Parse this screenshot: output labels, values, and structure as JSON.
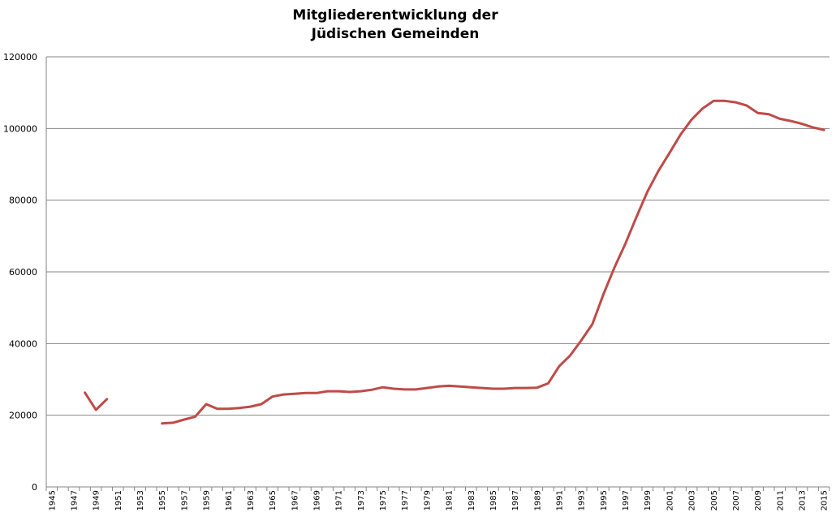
{
  "chart_data": {
    "type": "line",
    "title": [
      "Mitgliederentwicklung der",
      "Jüdischen Gemeinden"
    ],
    "xlabel": "",
    "ylabel": "",
    "xlim": [
      1945,
      2016
    ],
    "ylim": [
      0,
      120000
    ],
    "y_ticks": [
      "0",
      "20000",
      "40000",
      "60000",
      "80000",
      "100000",
      "120000"
    ],
    "x_tick_labels": [
      "1945",
      "1947",
      "1949",
      "1951",
      "1953",
      "1955",
      "1957",
      "1959",
      "1961",
      "1963",
      "1965",
      "1967",
      "1969",
      "1971",
      "1973",
      "1975",
      "1977",
      "1979",
      "1981",
      "1983",
      "1985",
      "1987",
      "1989",
      "1991",
      "1993",
      "1995",
      "1997",
      "1999",
      "2001",
      "2003",
      "2005",
      "2007",
      "2009",
      "2011",
      "2013",
      "2015"
    ],
    "grid": "horizontal",
    "legend": "none",
    "series_color": "#be4b48",
    "gridline_color": "#868686",
    "series": [
      {
        "segments": [
          {
            "x": [
              1948,
              1949,
              1950
            ],
            "y": [
              26300,
              21500,
              24500
            ]
          },
          {
            "x": [
              1955,
              1956,
              1957,
              1958,
              1959,
              1960,
              1961,
              1962,
              1963,
              1964,
              1965,
              1966,
              1967,
              1968,
              1969,
              1970,
              1971,
              1972,
              1973,
              1974,
              1975,
              1976,
              1977,
              1978,
              1979,
              1980,
              1981,
              1982,
              1983,
              1984,
              1985,
              1986,
              1987,
              1988,
              1989,
              1990,
              1991,
              1992,
              1993,
              1994,
              1995,
              1996,
              1997,
              1998,
              1999,
              2000,
              2001,
              2002,
              2003,
              2004,
              2005,
              2006,
              2007,
              2008,
              2009,
              2010,
              2011,
              2012,
              2013,
              2014,
              2015
            ],
            "y": [
              17700,
              17900,
              18800,
              19600,
              23100,
              21800,
              21800,
              22000,
              22400,
              23100,
              25200,
              25800,
              26000,
              26200,
              26200,
              26700,
              26700,
              26500,
              26700,
              27100,
              27800,
              27400,
              27200,
              27200,
              27600,
              28000,
              28200,
              28000,
              27800,
              27600,
              27400,
              27400,
              27600,
              27600,
              27700,
              28900,
              33700,
              36700,
              40900,
              45400,
              53700,
              61200,
              67900,
              75300,
              82400,
              88200,
              93200,
              98300,
              102500,
              105600,
              107700,
              107700,
              107300,
              106400,
              104300,
              104000,
              102700,
              102100,
              101300,
              100300,
              99600
            ]
          }
        ]
      }
    ]
  }
}
